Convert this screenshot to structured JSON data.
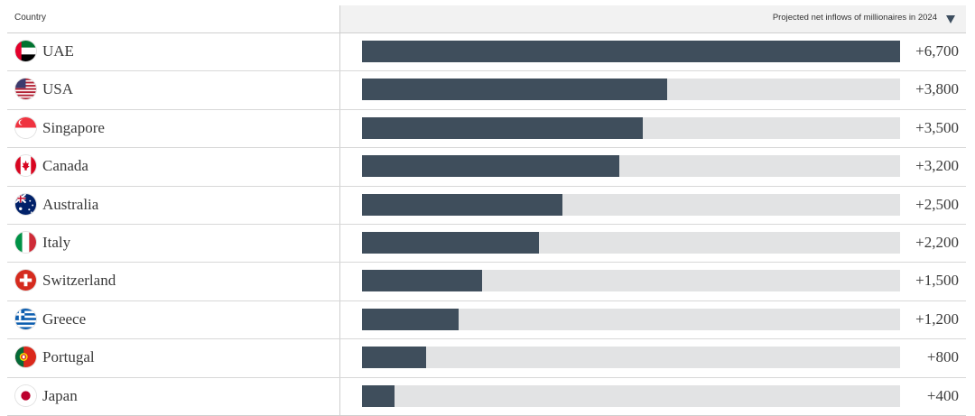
{
  "header": {
    "country_label": "Country",
    "metric_label": "Projected net inflows of millionaires in 2024",
    "sort_icon": "triangle-down-icon"
  },
  "chart_data": {
    "type": "bar",
    "orientation": "horizontal",
    "xlim": [
      0,
      6700
    ],
    "grid": false,
    "categories": [
      "UAE",
      "USA",
      "Singapore",
      "Canada",
      "Australia",
      "Italy",
      "Switzerland",
      "Greece",
      "Portugal",
      "Japan"
    ],
    "values": [
      6700,
      3800,
      3500,
      3200,
      2500,
      2200,
      1500,
      1200,
      800,
      400
    ],
    "labels": [
      "+6,700",
      "+3,800",
      "+3,500",
      "+3,200",
      "+2,500",
      "+2,200",
      "+1,500",
      "+1,200",
      "+800",
      "+400"
    ],
    "flags": [
      "uae-flag-icon",
      "usa-flag-icon",
      "singapore-flag-icon",
      "canada-flag-icon",
      "australia-flag-icon",
      "italy-flag-icon",
      "switzerland-flag-icon",
      "greece-flag-icon",
      "portugal-flag-icon",
      "japan-flag-icon"
    ],
    "colors": {
      "bar": "#3f4e5c",
      "track": "#e2e3e4"
    }
  }
}
